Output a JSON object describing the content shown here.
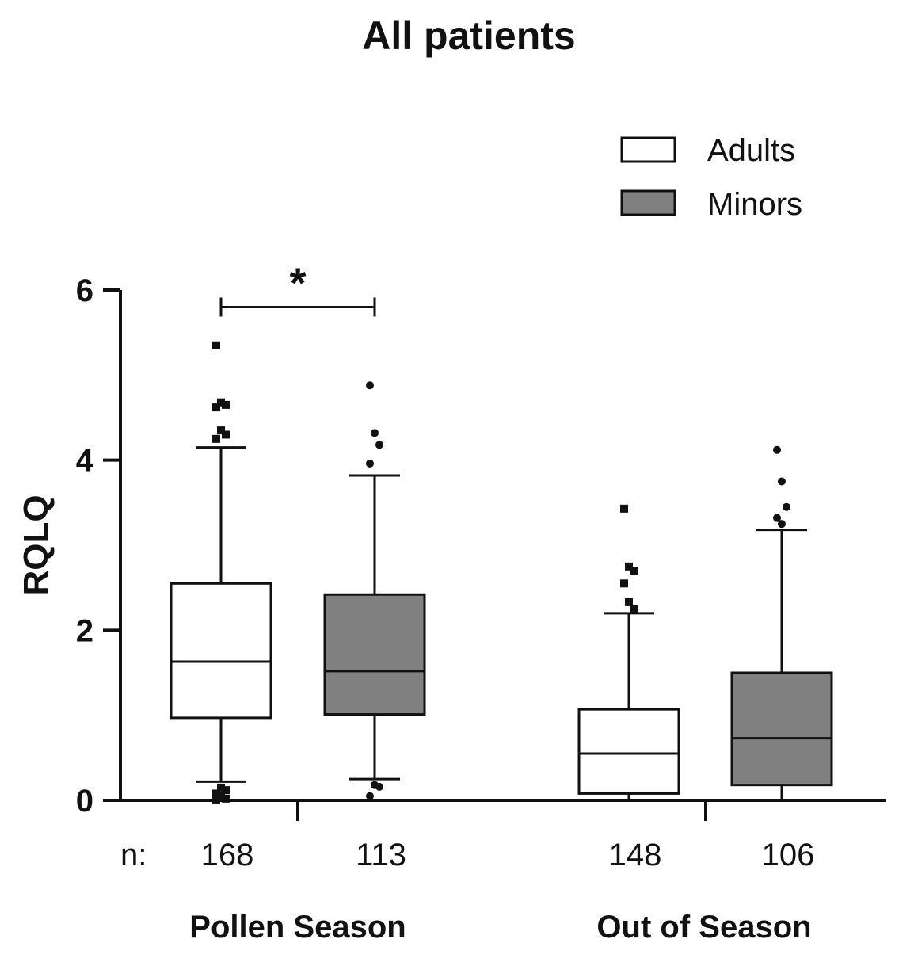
{
  "chart_data": {
    "type": "box",
    "title": "All patients",
    "ylabel": "RQLQ",
    "xlabel": "",
    "ylim": [
      0,
      6
    ],
    "yticks": [
      0,
      2,
      4,
      6
    ],
    "grid": false,
    "legend": {
      "position": "top-right",
      "entries": [
        {
          "name": "Adults",
          "color": "#ffffff"
        },
        {
          "name": "Minors",
          "color": "#808080"
        }
      ]
    },
    "n_prefix": "n:",
    "groups": [
      "Pollen Season",
      "Out of Season"
    ],
    "boxes": [
      {
        "group": "Pollen Season",
        "series": "Adults",
        "n": "168",
        "fill": "#ffffff",
        "marker": "square",
        "whisker_low": 0.22,
        "q1": 0.97,
        "median": 1.63,
        "q3": 2.55,
        "whisker_high": 4.15,
        "outliers": [
          5.35,
          4.68,
          4.65,
          4.62,
          4.35,
          4.3,
          4.25,
          0.15,
          0.12,
          0.08,
          0.05,
          0.02,
          0.01
        ]
      },
      {
        "group": "Pollen Season",
        "series": "Minors",
        "n": "113",
        "fill": "#808080",
        "marker": "circle",
        "whisker_low": 0.25,
        "q1": 1.01,
        "median": 1.52,
        "q3": 2.42,
        "whisker_high": 3.82,
        "outliers": [
          4.88,
          4.32,
          4.18,
          3.96,
          0.18,
          0.16,
          0.05
        ]
      },
      {
        "group": "Out of Season",
        "series": "Adults",
        "n": "148",
        "fill": "#ffffff",
        "marker": "square",
        "whisker_low": 0.0,
        "q1": 0.08,
        "median": 0.55,
        "q3": 1.07,
        "whisker_high": 2.2,
        "outliers": [
          3.43,
          2.75,
          2.7,
          2.55,
          2.33,
          2.25
        ]
      },
      {
        "group": "Out of Season",
        "series": "Minors",
        "n": "106",
        "fill": "#808080",
        "marker": "circle",
        "whisker_low": 0.0,
        "q1": 0.18,
        "median": 0.73,
        "q3": 1.5,
        "whisker_high": 3.18,
        "outliers": [
          4.12,
          3.75,
          3.45,
          3.32,
          3.25
        ]
      }
    ],
    "significance": {
      "label": "*",
      "from_box": 0,
      "to_box": 1,
      "y": 5.8
    }
  }
}
